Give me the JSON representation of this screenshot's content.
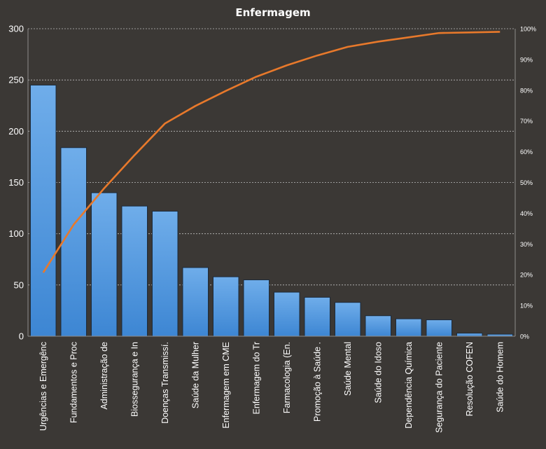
{
  "chart_data": {
    "type": "bar",
    "title": "Enfermagem",
    "categories": [
      "Urgências e Emergênc",
      "Fundamentos e Proc",
      "Administração de",
      "Biossegurança e In",
      "Doenças Transmissí.",
      "Saúde da Mulher",
      "Enfermagem em CME",
      "Enfermagem do Tr",
      "Farmacologia (En.",
      "Promoção à Saúde .",
      "Saúde Mental",
      "Saúde do Idoso",
      "Dependência Química",
      "Segurança do Paciente",
      "Resolução COFEN",
      "Saúde do Homem"
    ],
    "series": [
      {
        "type": "bar",
        "axis": "primary",
        "values": [
          245,
          184,
          140,
          127,
          122,
          67,
          58,
          55,
          43,
          38,
          33,
          20,
          17,
          16,
          3,
          2
        ]
      },
      {
        "type": "line",
        "axis": "secondary",
        "values": [
          20.7,
          36.3,
          48.1,
          58.9,
          69.2,
          74.9,
          79.8,
          84.4,
          88.1,
          91.3,
          94.1,
          95.8,
          97.2,
          98.6,
          98.8,
          99.0
        ]
      }
    ],
    "ylim": [
      0,
      300
    ],
    "yticks": [
      "0",
      "50",
      "100",
      "150",
      "200",
      "250",
      "300"
    ],
    "y2lim": [
      0,
      100
    ],
    "y2ticks": [
      "0%",
      "10%",
      "20%",
      "30%",
      "40%",
      "50%",
      "60%",
      "70%",
      "80%",
      "90%",
      "100%"
    ],
    "grid": true,
    "colors": {
      "background": "#3b3835",
      "bar": "#4a90d9",
      "bar_light": "#6aa7e6",
      "line": "#e8792b",
      "grid": "#bfbfbf",
      "text": "#ffffff"
    }
  }
}
